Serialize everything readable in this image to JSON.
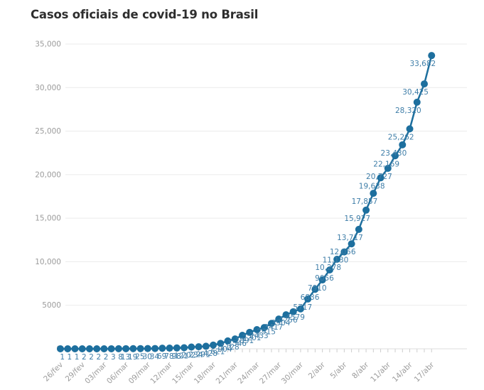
{
  "chart_data": {
    "type": "line",
    "title": "Casos oficiais de covid-19 no Brasil",
    "xlabel": "",
    "ylabel": "",
    "ylim": [
      0,
      35000
    ],
    "grid": "horizontal",
    "legend": "none",
    "marker": "circle",
    "x": [
      "26/fev",
      "27/fev",
      "28/fev",
      "29/fev",
      "01/mar",
      "02/mar",
      "03/mar",
      "04/mar",
      "05/mar",
      "06/mar",
      "07/mar",
      "08/mar",
      "09/mar",
      "10/mar",
      "11/mar",
      "12/mar",
      "13/mar",
      "14/mar",
      "15/mar",
      "16/mar",
      "17/mar",
      "18/mar",
      "19/mar",
      "20/mar",
      "21/mar",
      "22/mar",
      "23/mar",
      "24/mar",
      "25/mar",
      "26/mar",
      "27/mar",
      "28/mar",
      "29/mar",
      "30/mar",
      "31/mar",
      "1/abr",
      "2/abr",
      "3/abr",
      "4/abr",
      "5/abr",
      "6/abr",
      "7/abr",
      "8/abr",
      "9/abr",
      "10/abr",
      "11/abr",
      "12/abr",
      "13/abr",
      "14/abr",
      "15/abr",
      "16/abr",
      "17/abr"
    ],
    "values": [
      1,
      1,
      1,
      2,
      2,
      2,
      2,
      3,
      8,
      13,
      19,
      25,
      30,
      34,
      69,
      78,
      98,
      121,
      202,
      234,
      291,
      428,
      621,
      904,
      1128,
      1546,
      1891,
      2201,
      2433,
      2915,
      3417,
      3904,
      4256,
      4579,
      5717,
      6836,
      7910,
      9056,
      10278,
      11130,
      12056,
      13717,
      15927,
      17857,
      19638,
      20727,
      22169,
      23430,
      25262,
      28320,
      30425,
      33682
    ],
    "point_labels": [
      "1",
      "1",
      "1",
      "2",
      "2",
      "2",
      "2",
      "3",
      "8",
      "13",
      "19",
      "25",
      "30",
      "34",
      "69",
      "78",
      "98",
      "121",
      "202",
      "234",
      "291",
      "428",
      "621",
      "904",
      "1128",
      "1546",
      "1891",
      "2201",
      "2433",
      "2915",
      "3417",
      "3904",
      "4256",
      "4579",
      "5717",
      "6836",
      "7910",
      "9056",
      "10,278",
      "11,130",
      "12,056",
      "13,717",
      "15,927",
      "17,857",
      "19,638",
      "20,727",
      "22,169",
      "23,430",
      "25,262",
      "28,320",
      "30,425",
      "33,682"
    ],
    "x_tick_every": 3,
    "x_tick_labels": [
      "26/fev",
      "29/fev",
      "03/mar",
      "06/mar",
      "09/mar",
      "12/mar",
      "15/mar",
      "18/mar",
      "21/mar",
      "24/mar",
      "27/mar",
      "30/mar",
      "2/abr",
      "5/abr",
      "8/abr",
      "11/abr",
      "14/abr",
      "17/abr"
    ],
    "y_tick_values": [
      0,
      5000,
      10000,
      15000,
      20000,
      25000,
      30000,
      35000
    ],
    "y_tick_labels": [
      "0",
      "5000",
      "10,000",
      "15,000",
      "20,000",
      "25,000",
      "30,000",
      "35,000"
    ],
    "colors": {
      "line": "#1d6f9e",
      "point": "#1d6f9e",
      "point_label": "#3f7ea8",
      "grid": "#ebebeb",
      "zero_line": "#dcdcdc",
      "tick": "#cccccc",
      "axis_text": "#9b9b9b",
      "title": "#2e2e2e"
    }
  }
}
